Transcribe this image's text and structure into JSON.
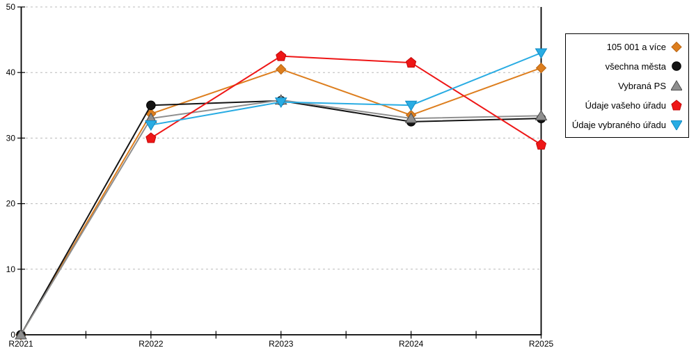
{
  "chart_data": {
    "type": "line",
    "title": "",
    "xlabel": "",
    "ylabel": "",
    "categories": [
      "R2021",
      "R2022",
      "R2023",
      "R2024",
      "R2025"
    ],
    "y_ticks": [
      0,
      10,
      20,
      30,
      40,
      50
    ],
    "ylim": [
      0,
      50
    ],
    "grid": "horizontal-dashed",
    "grid_color": "#b8b8b8",
    "axis_color": "#000000",
    "legend_position": "right",
    "series": [
      {
        "name": "105 001 a více",
        "marker": "diamond",
        "color": "#dd7e1e",
        "edge": "#b96410",
        "values": [
          0,
          33.7,
          40.5,
          33.5,
          40.7
        ]
      },
      {
        "name": "všechna města",
        "marker": "circle",
        "color": "#141414",
        "edge": "#000000",
        "values": [
          0,
          35,
          35.7,
          32.5,
          33
        ]
      },
      {
        "name": "Vybraná PS",
        "marker": "triangle-up",
        "color": "#8f8f8f",
        "edge": "#4d4d4d",
        "values": [
          0,
          33,
          35.8,
          33,
          33.4
        ]
      },
      {
        "name": "Údaje vašeho úřadu",
        "marker": "pentagon",
        "color": "#ee1616",
        "edge": "#c40808",
        "values": [
          null,
          30,
          42.5,
          41.5,
          29
        ]
      },
      {
        "name": "Údaje vybraného úřadu",
        "marker": "triangle-down",
        "color": "#29ace3",
        "edge": "#118bc4",
        "values": [
          null,
          32,
          35.5,
          35,
          43
        ]
      }
    ]
  }
}
